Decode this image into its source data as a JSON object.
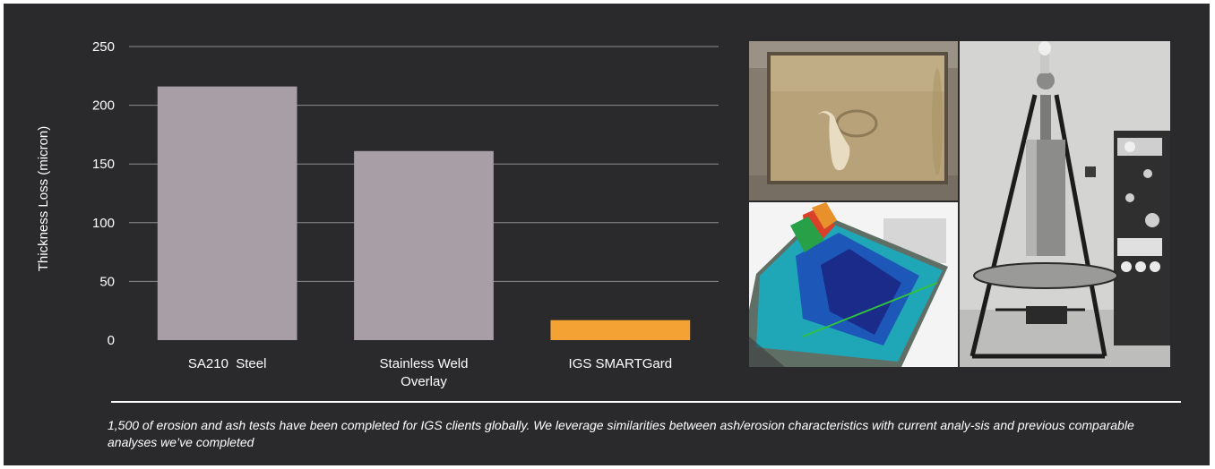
{
  "chart_data": {
    "type": "bar",
    "categories": [
      "SA210  Steel",
      "Stainless Weld Overlay",
      "IGS SMARTGard"
    ],
    "category_lines": [
      [
        "SA210  Steel"
      ],
      [
        "Stainless Weld",
        "Overlay"
      ],
      [
        "IGS SMARTGard"
      ]
    ],
    "values": [
      216,
      161,
      17
    ],
    "ylabel": "Thickness Loss (micron)",
    "xlabel": "",
    "ylim": [
      0,
      250
    ],
    "yticks": [
      0,
      50,
      100,
      150,
      200,
      250
    ],
    "grid": true,
    "colors": [
      "#a79ea6",
      "#a79ea6",
      "#f3a233"
    ]
  },
  "photos": [
    {
      "name": "coated-sample-plate"
    },
    {
      "name": "erosion-surface-scan"
    },
    {
      "name": "erosion-test-rig"
    }
  ],
  "caption": "1,500 of erosion and ash tests have been completed for IGS clients globally. We leverage similarities between ash/erosion characteristics with current analy-sis and previous comparable analyses we’ve completed",
  "colors": {
    "background": "#2a2a2c",
    "grid": "#8d8d8f",
    "text": "#ffffff"
  }
}
